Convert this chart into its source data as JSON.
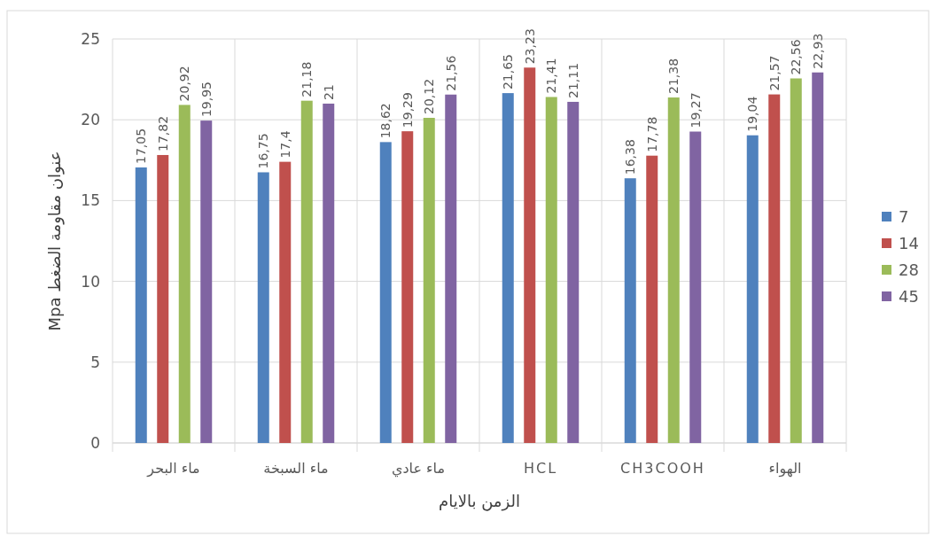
{
  "chart_data": {
    "type": "bar",
    "xlabel": "الزمن بالايام",
    "ylabel": "عنوان مقاومة الضغط Mpa",
    "categories": [
      "ماء البحر",
      "ماء السبخة",
      "ماء عادي",
      "HCL",
      "CH3COOH",
      "الهواء"
    ],
    "ylim": [
      0,
      25
    ],
    "yticks": [
      0,
      5,
      10,
      15,
      20,
      25
    ],
    "grid": true,
    "legend": "right",
    "series": [
      {
        "name": "7",
        "color": "#4f81bd",
        "values": [
          17.05,
          16.75,
          18.62,
          21.65,
          16.38,
          19.04
        ],
        "value_labels": [
          "17,05",
          "16,75",
          "18,62",
          "21,65",
          "16,38",
          "19,04"
        ]
      },
      {
        "name": "14",
        "color": "#c0504d",
        "values": [
          17.82,
          17.4,
          19.29,
          23.23,
          17.78,
          21.57
        ],
        "value_labels": [
          "17,82",
          "17,4",
          "19,29",
          "23,23",
          "17,78",
          "21,57"
        ]
      },
      {
        "name": "28",
        "color": "#9bbb59",
        "values": [
          20.92,
          21.18,
          20.12,
          21.41,
          21.38,
          22.56
        ],
        "value_labels": [
          "20,92",
          "21,18",
          "20,12",
          "21,41",
          "21,38",
          "22,56"
        ]
      },
      {
        "name": "45",
        "color": "#8064a2",
        "values": [
          19.95,
          21,
          21.56,
          21.11,
          19.27,
          22.93
        ],
        "value_labels": [
          "19,95",
          "21",
          "21,56",
          "21,11",
          "19,27",
          "22,93"
        ]
      }
    ]
  }
}
